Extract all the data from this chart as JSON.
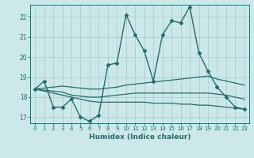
{
  "title": "",
  "xlabel": "Humidex (Indice chaleur)",
  "xlim": [
    -0.5,
    23.5
  ],
  "ylim": [
    16.7,
    22.6
  ],
  "yticks": [
    17,
    18,
    19,
    20,
    21,
    22
  ],
  "xticks": [
    0,
    1,
    2,
    3,
    4,
    5,
    6,
    7,
    8,
    9,
    10,
    11,
    12,
    13,
    14,
    15,
    16,
    17,
    18,
    19,
    20,
    21,
    22,
    23
  ],
  "background_color": "#cde8e8",
  "grid_color": "#aacece",
  "line_color": "#1e6e6e",
  "lines": [
    {
      "x": [
        0,
        1,
        2,
        3,
        4,
        5,
        6,
        7,
        8,
        9,
        10,
        11,
        12,
        13,
        14,
        15,
        16,
        17,
        18,
        19,
        20,
        21,
        22,
        23
      ],
      "y": [
        18.4,
        18.8,
        17.5,
        17.5,
        17.9,
        17.0,
        16.8,
        17.1,
        19.6,
        19.7,
        22.1,
        21.1,
        20.3,
        18.8,
        21.1,
        21.8,
        21.7,
        22.5,
        20.2,
        19.3,
        18.5,
        18.0,
        17.5,
        17.4
      ],
      "marker": "D",
      "marker_size": 2.5,
      "linewidth": 1.0
    },
    {
      "x": [
        0,
        1,
        2,
        3,
        4,
        5,
        6,
        7,
        8,
        9,
        10,
        11,
        12,
        13,
        14,
        15,
        16,
        17,
        18,
        19,
        20,
        21,
        22,
        23
      ],
      "y": [
        18.4,
        18.45,
        18.5,
        18.55,
        18.5,
        18.45,
        18.4,
        18.4,
        18.45,
        18.5,
        18.6,
        18.65,
        18.7,
        18.75,
        18.8,
        18.85,
        18.9,
        18.95,
        19.0,
        19.05,
        18.9,
        18.8,
        18.7,
        18.6
      ],
      "marker": null,
      "linewidth": 0.9
    },
    {
      "x": [
        0,
        1,
        2,
        3,
        4,
        5,
        6,
        7,
        8,
        9,
        10,
        11,
        12,
        13,
        14,
        15,
        16,
        17,
        18,
        19,
        20,
        21,
        22,
        23
      ],
      "y": [
        18.4,
        18.35,
        18.3,
        18.25,
        18.1,
        18.05,
        18.0,
        18.0,
        18.05,
        18.1,
        18.15,
        18.2,
        18.2,
        18.2,
        18.2,
        18.2,
        18.2,
        18.2,
        18.2,
        18.2,
        18.15,
        18.1,
        18.0,
        17.9
      ],
      "marker": null,
      "linewidth": 0.9
    },
    {
      "x": [
        0,
        1,
        2,
        3,
        4,
        5,
        6,
        7,
        8,
        9,
        10,
        11,
        12,
        13,
        14,
        15,
        16,
        17,
        18,
        19,
        20,
        21,
        22,
        23
      ],
      "y": [
        18.4,
        18.3,
        18.2,
        18.1,
        18.0,
        17.9,
        17.8,
        17.75,
        17.75,
        17.75,
        17.75,
        17.75,
        17.75,
        17.7,
        17.7,
        17.7,
        17.65,
        17.65,
        17.6,
        17.6,
        17.55,
        17.5,
        17.45,
        17.4
      ],
      "marker": null,
      "linewidth": 0.9
    }
  ]
}
